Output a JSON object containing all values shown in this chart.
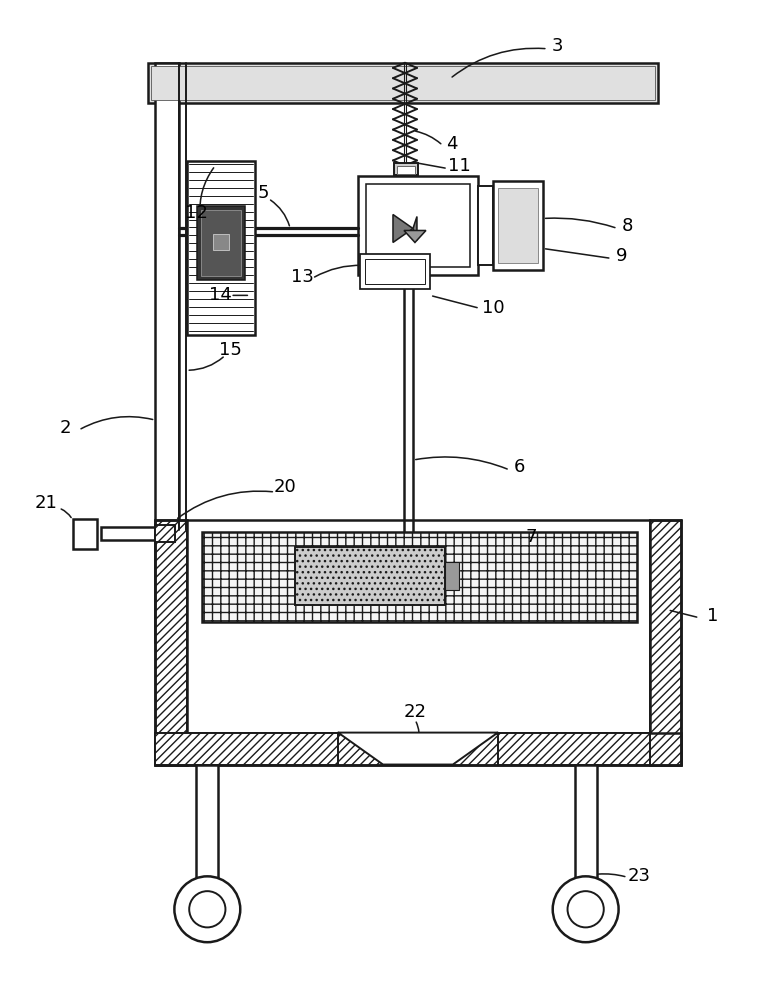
{
  "bg_color": "#ffffff",
  "line_color": "#1a1a1a",
  "figsize": [
    7.79,
    10.0
  ],
  "dpi": 100
}
